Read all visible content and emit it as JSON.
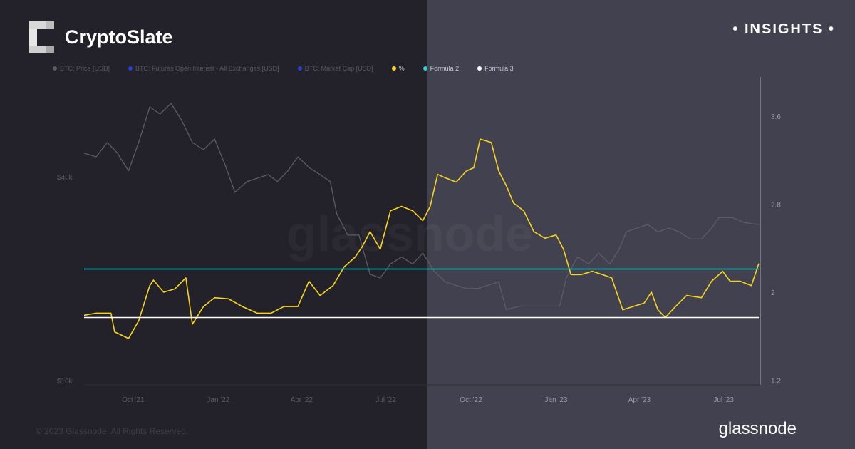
{
  "brand": {
    "name": "CryptoSlate",
    "badge": "• INSIGHTS •"
  },
  "footer": {
    "copyright": "© 2023 Glassnode. All Rights Reserved.",
    "logo_text": "glassnode",
    "watermark": "glassnode"
  },
  "colors": {
    "left_bg": "#232129",
    "right_bg": "#42414f",
    "price": "#5f5a66",
    "ratio": "#f7d51e",
    "formula2": "#2ad4d6",
    "formula3": "#ffffff"
  },
  "legend": [
    {
      "label": "BTC: Price [USD]",
      "color": "#5a5866"
    },
    {
      "label": "BTC: Futures Open Interest - All Exchanges [USD]",
      "color": "#2a3fd0"
    },
    {
      "label": "BTC: Market Cap [USD]",
      "color": "#2a3fd0"
    },
    {
      "label": "%",
      "color": "#f7d51e"
    },
    {
      "label": "Formula 2",
      "color": "#2ad4d6"
    },
    {
      "label": "Formula 3",
      "color": "#ffffff"
    }
  ],
  "chart_data": {
    "type": "line",
    "xrange": [
      "2021-08-09",
      "2023-08-08"
    ],
    "x_ticks": [
      [
        "2021-10-01",
        "Oct '21"
      ],
      [
        "2022-01-01",
        "Jan '22"
      ],
      [
        "2022-04-01",
        "Apr '22"
      ],
      [
        "2022-07-01",
        "Jul '22"
      ],
      [
        "2022-10-01",
        "Oct '22"
      ],
      [
        "2023-01-01",
        "Jan '23"
      ],
      [
        "2023-04-01",
        "Apr '23"
      ],
      [
        "2023-07-01",
        "Jul '23"
      ]
    ],
    "y_left": {
      "scale": "log",
      "ticks": [
        [
          40000,
          "$40k"
        ],
        [
          10000,
          "$10k"
        ]
      ]
    },
    "y_right": {
      "scale": "linear",
      "range": [
        1.2,
        3.85
      ],
      "ticks": [
        [
          3.6,
          "3.6"
        ],
        [
          2.8,
          "2.8"
        ],
        [
          2,
          "2"
        ],
        [
          1.2,
          "1.2"
        ]
      ]
    },
    "grid": false,
    "legend_placement": "top-left",
    "series": [
      {
        "name": "BTC: Price [USD]",
        "axis": "left",
        "color": "#5f5a66",
        "points": [
          [
            "2021-08-09",
            47000
          ],
          [
            "2021-08-22",
            45800
          ],
          [
            "2021-09-03",
            50500
          ],
          [
            "2021-09-14",
            47000
          ],
          [
            "2021-09-26",
            41600
          ],
          [
            "2021-10-07",
            50500
          ],
          [
            "2021-10-19",
            64300
          ],
          [
            "2021-10-30",
            61300
          ],
          [
            "2021-11-11",
            65900
          ],
          [
            "2021-11-23",
            58300
          ],
          [
            "2021-12-04",
            50500
          ],
          [
            "2021-12-16",
            48100
          ],
          [
            "2021-12-28",
            51700
          ],
          [
            "2022-01-08",
            43600
          ],
          [
            "2022-01-19",
            36000
          ],
          [
            "2022-02-01",
            38700
          ],
          [
            "2022-02-12",
            39600
          ],
          [
            "2022-02-24",
            40600
          ],
          [
            "2022-03-06",
            38700
          ],
          [
            "2022-03-17",
            41600
          ],
          [
            "2022-03-28",
            45800
          ],
          [
            "2022-04-09",
            42600
          ],
          [
            "2022-04-21",
            40600
          ],
          [
            "2022-05-02",
            38700
          ],
          [
            "2022-05-09",
            31100
          ],
          [
            "2022-05-21",
            26900
          ],
          [
            "2022-06-02",
            26900
          ],
          [
            "2022-06-14",
            20600
          ],
          [
            "2022-06-25",
            20100
          ],
          [
            "2022-07-06",
            22100
          ],
          [
            "2022-07-18",
            23200
          ],
          [
            "2022-07-30",
            22100
          ],
          [
            "2022-08-10",
            23800
          ],
          [
            "2022-08-22",
            21100
          ],
          [
            "2022-09-03",
            19600
          ],
          [
            "2022-09-15",
            19100
          ],
          [
            "2022-09-26",
            18700
          ],
          [
            "2022-10-08",
            18700
          ],
          [
            "2022-10-19",
            19100
          ],
          [
            "2022-10-31",
            19600
          ],
          [
            "2022-11-08",
            16200
          ],
          [
            "2022-11-23",
            16600
          ],
          [
            "2022-12-08",
            16600
          ],
          [
            "2022-12-24",
            16600
          ],
          [
            "2023-01-05",
            16600
          ],
          [
            "2023-01-12",
            20100
          ],
          [
            "2023-01-24",
            23200
          ],
          [
            "2023-02-05",
            22100
          ],
          [
            "2023-02-16",
            23800
          ],
          [
            "2023-02-28",
            22100
          ],
          [
            "2023-03-10",
            24400
          ],
          [
            "2023-03-18",
            27500
          ],
          [
            "2023-03-29",
            28200
          ],
          [
            "2023-04-10",
            28900
          ],
          [
            "2023-04-21",
            27500
          ],
          [
            "2023-05-03",
            28200
          ],
          [
            "2023-05-14",
            27500
          ],
          [
            "2023-05-26",
            26200
          ],
          [
            "2023-06-07",
            26200
          ],
          [
            "2023-06-18",
            28200
          ],
          [
            "2023-06-26",
            30300
          ],
          [
            "2023-07-11",
            30300
          ],
          [
            "2023-07-23",
            29300
          ],
          [
            "2023-08-08",
            28900
          ]
        ]
      },
      {
        "name": "%",
        "axis": "right",
        "color": "#f7d51e",
        "points": [
          [
            "2021-08-09",
            1.79
          ],
          [
            "2021-08-22",
            1.81
          ],
          [
            "2021-09-07",
            1.81
          ],
          [
            "2021-09-11",
            1.64
          ],
          [
            "2021-09-26",
            1.58
          ],
          [
            "2021-10-07",
            1.74
          ],
          [
            "2021-10-19",
            2.06
          ],
          [
            "2021-10-23",
            2.11
          ],
          [
            "2021-11-03",
            2.0
          ],
          [
            "2021-11-15",
            2.03
          ],
          [
            "2021-11-27",
            2.13
          ],
          [
            "2021-12-04",
            1.71
          ],
          [
            "2021-12-16",
            1.87
          ],
          [
            "2021-12-28",
            1.95
          ],
          [
            "2022-01-12",
            1.94
          ],
          [
            "2022-01-27",
            1.87
          ],
          [
            "2022-02-12",
            1.81
          ],
          [
            "2022-02-27",
            1.81
          ],
          [
            "2022-03-13",
            1.87
          ],
          [
            "2022-03-28",
            1.87
          ],
          [
            "2022-04-09",
            2.1
          ],
          [
            "2022-04-21",
            1.97
          ],
          [
            "2022-05-05",
            2.06
          ],
          [
            "2022-05-17",
            2.23
          ],
          [
            "2022-05-29",
            2.32
          ],
          [
            "2022-06-06",
            2.42
          ],
          [
            "2022-06-14",
            2.55
          ],
          [
            "2022-06-25",
            2.39
          ],
          [
            "2022-07-06",
            2.74
          ],
          [
            "2022-07-18",
            2.78
          ],
          [
            "2022-07-30",
            2.74
          ],
          [
            "2022-08-10",
            2.65
          ],
          [
            "2022-08-18",
            2.78
          ],
          [
            "2022-08-26",
            3.07
          ],
          [
            "2022-09-03",
            3.04
          ],
          [
            "2022-09-15",
            3.0
          ],
          [
            "2022-09-26",
            3.1
          ],
          [
            "2022-10-04",
            3.13
          ],
          [
            "2022-10-11",
            3.39
          ],
          [
            "2022-10-23",
            3.36
          ],
          [
            "2022-10-31",
            3.1
          ],
          [
            "2022-11-08",
            2.97
          ],
          [
            "2022-11-16",
            2.81
          ],
          [
            "2022-11-27",
            2.74
          ],
          [
            "2022-12-08",
            2.55
          ],
          [
            "2022-12-20",
            2.49
          ],
          [
            "2023-01-01",
            2.52
          ],
          [
            "2023-01-09",
            2.39
          ],
          [
            "2023-01-17",
            2.16
          ],
          [
            "2023-01-28",
            2.16
          ],
          [
            "2023-02-09",
            2.19
          ],
          [
            "2023-02-20",
            2.16
          ],
          [
            "2023-03-02",
            2.13
          ],
          [
            "2023-03-14",
            1.84
          ],
          [
            "2023-03-25",
            1.87
          ],
          [
            "2023-04-06",
            1.9
          ],
          [
            "2023-04-14",
            2.0
          ],
          [
            "2023-04-21",
            1.84
          ],
          [
            "2023-04-29",
            1.77
          ],
          [
            "2023-05-10",
            1.87
          ],
          [
            "2023-05-22",
            1.97
          ],
          [
            "2023-06-07",
            1.95
          ],
          [
            "2023-06-18",
            2.1
          ],
          [
            "2023-06-30",
            2.19
          ],
          [
            "2023-07-08",
            2.1
          ],
          [
            "2023-07-19",
            2.1
          ],
          [
            "2023-07-31",
            2.06
          ],
          [
            "2023-08-08",
            2.26
          ]
        ]
      },
      {
        "name": "Formula 2",
        "axis": "right",
        "color": "#2ad4d6",
        "constant": 2.21
      },
      {
        "name": "Formula 3",
        "axis": "right",
        "color": "#ffffff",
        "constant": 1.77
      }
    ]
  }
}
